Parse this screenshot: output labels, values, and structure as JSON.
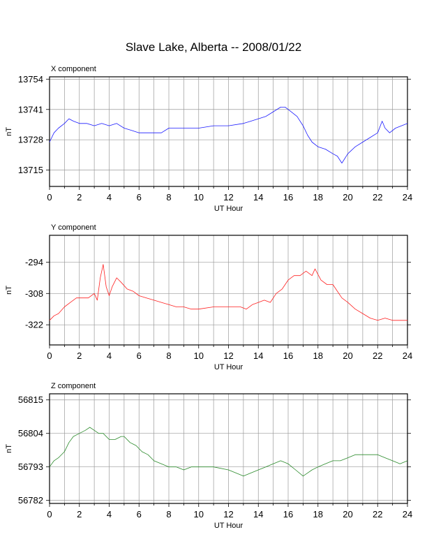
{
  "title": "Slave Lake, Alberta -- 2008/01/22",
  "chart_data": [
    {
      "type": "line",
      "panel_label": "X component",
      "xlabel": "UT Hour",
      "ylabel": "nT",
      "xlim": [
        0,
        24
      ],
      "ylim": [
        13708,
        13755
      ],
      "x_ticks": [
        0,
        2,
        4,
        6,
        8,
        10,
        12,
        14,
        16,
        18,
        20,
        22,
        24
      ],
      "y_ticks": [
        13754,
        13741,
        13728,
        13715
      ],
      "grid": true,
      "color": "#1a1aff",
      "series": [
        {
          "x": [
            0,
            0.3,
            0.6,
            1.0,
            1.3,
            1.6,
            2.0,
            2.5,
            3.0,
            3.5,
            4.0,
            4.5,
            5.0,
            5.5,
            6.0,
            6.5,
            7.0,
            7.5,
            8.0,
            8.5,
            9.0,
            10.0,
            11.0,
            12.0,
            13.0,
            13.5,
            14.0,
            14.5,
            15.0,
            15.5,
            15.8,
            16.2,
            16.6,
            17.0,
            17.3,
            17.6,
            18.0,
            18.5,
            19.0,
            19.3,
            19.6,
            20.0,
            20.5,
            21.0,
            21.5,
            22.0,
            22.3,
            22.5,
            22.8,
            23.2,
            23.6,
            24.0
          ],
          "y": [
            13727,
            13731,
            13733,
            13735,
            13737,
            13736,
            13735,
            13735,
            13734,
            13735,
            13734,
            13735,
            13733,
            13732,
            13731,
            13731,
            13731,
            13731,
            13733,
            13733,
            13733,
            13733,
            13734,
            13734,
            13735,
            13736,
            13737,
            13738,
            13740,
            13742,
            13742,
            13740,
            13738,
            13734,
            13730,
            13727,
            13725,
            13724,
            13722,
            13721,
            13718,
            13722,
            13725,
            13727,
            13729,
            13731,
            13736,
            13733,
            13731,
            13733,
            13734,
            13735
          ]
        }
      ]
    },
    {
      "type": "line",
      "panel_label": "Y component",
      "xlabel": "UT Hour",
      "ylabel": "nT",
      "xlim": [
        0,
        24
      ],
      "ylim": [
        -331,
        -282
      ],
      "x_ticks": [
        0,
        2,
        4,
        6,
        8,
        10,
        12,
        14,
        16,
        18,
        20,
        22,
        24
      ],
      "y_ticks": [
        -294,
        -308,
        -322
      ],
      "grid": true,
      "color": "#ff2020",
      "series": [
        {
          "x": [
            0,
            0.3,
            0.6,
            1.0,
            1.4,
            1.8,
            2.2,
            2.6,
            3.0,
            3.2,
            3.4,
            3.6,
            3.8,
            4.0,
            4.2,
            4.5,
            4.8,
            5.2,
            5.6,
            6.0,
            6.5,
            7.0,
            7.5,
            8.0,
            8.5,
            9.0,
            9.5,
            10.0,
            11.0,
            12.0,
            12.8,
            13.2,
            13.6,
            14.0,
            14.4,
            14.8,
            15.2,
            15.6,
            16.0,
            16.4,
            16.8,
            17.2,
            17.6,
            17.8,
            18.2,
            18.6,
            19.0,
            19.3,
            19.6,
            20.0,
            20.5,
            21.0,
            21.5,
            22.0,
            22.5,
            23.0,
            23.5,
            24.0
          ],
          "y": [
            -320,
            -318,
            -317,
            -314,
            -312,
            -310,
            -310,
            -310,
            -308,
            -311,
            -301,
            -295,
            -305,
            -309,
            -305,
            -301,
            -303,
            -306,
            -307,
            -309,
            -310,
            -311,
            -312,
            -313,
            -314,
            -314,
            -315,
            -315,
            -314,
            -314,
            -314,
            -315,
            -313,
            -312,
            -311,
            -312,
            -308,
            -306,
            -302,
            -300,
            -300,
            -298,
            -300,
            -297,
            -302,
            -304,
            -304,
            -307,
            -310,
            -312,
            -315,
            -317,
            -319,
            -320,
            -319,
            -320,
            -320,
            -320
          ]
        }
      ]
    },
    {
      "type": "line",
      "panel_label": "Z component",
      "xlabel": "UT Hour",
      "ylabel": "nT",
      "xlim": [
        0,
        24
      ],
      "ylim": [
        56781,
        56817
      ],
      "x_ticks": [
        0,
        2,
        4,
        6,
        8,
        10,
        12,
        14,
        16,
        18,
        20,
        22,
        24
      ],
      "y_ticks": [
        56815,
        56804,
        56793,
        56782
      ],
      "grid": true,
      "color": "#2a8a2a",
      "series": [
        {
          "x": [
            0,
            0.3,
            0.6,
            1.0,
            1.3,
            1.6,
            2.0,
            2.4,
            2.7,
            3.0,
            3.3,
            3.6,
            4.0,
            4.4,
            4.8,
            5.0,
            5.4,
            5.8,
            6.2,
            6.6,
            7.0,
            7.5,
            8.0,
            8.5,
            9.0,
            9.5,
            10.0,
            11.0,
            12.0,
            12.5,
            13.0,
            13.5,
            14.0,
            14.5,
            15.0,
            15.5,
            16.0,
            16.5,
            17.0,
            17.3,
            17.6,
            18.0,
            18.5,
            19.0,
            19.5,
            20.0,
            20.5,
            21.0,
            21.5,
            22.0,
            22.5,
            23.0,
            23.5,
            24.0
          ],
          "y": [
            56793,
            56795,
            56796,
            56798,
            56801,
            56803,
            56804,
            56805,
            56806,
            56805,
            56804,
            56804,
            56802,
            56802,
            56803,
            56803,
            56801,
            56800,
            56798,
            56797,
            56795,
            56794,
            56793,
            56793,
            56792,
            56793,
            56793,
            56793,
            56792,
            56791,
            56790,
            56791,
            56792,
            56793,
            56794,
            56795,
            56794,
            56792,
            56790,
            56791,
            56792,
            56793,
            56794,
            56795,
            56795,
            56796,
            56797,
            56797,
            56797,
            56797,
            56796,
            56795,
            56794,
            56795
          ]
        }
      ]
    }
  ]
}
